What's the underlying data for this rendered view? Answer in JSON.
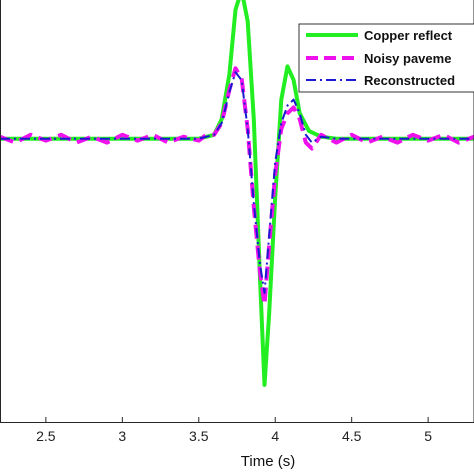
{
  "chart_data": {
    "type": "line",
    "xlabel": "Time (s)",
    "ylabel": "",
    "title": "",
    "xlim": [
      2.2,
      5.3
    ],
    "ylim": [
      -1.45,
      0.72
    ],
    "x_ticks": [
      2.5,
      3,
      3.5,
      4,
      4.5,
      5
    ],
    "x_tick_labels": [
      "2.5",
      "3",
      "3.5",
      "4",
      "4.5",
      "5"
    ],
    "grid": false,
    "legend_position": "top-right",
    "series": [
      {
        "name": "Copper reflect",
        "color": "#22ee22",
        "style": "solid",
        "x": [
          2.2,
          3.5,
          3.6,
          3.65,
          3.7,
          3.74,
          3.78,
          3.82,
          3.86,
          3.9,
          3.93,
          3.96,
          4.0,
          4.04,
          4.08,
          4.12,
          4.16,
          4.22,
          4.3,
          4.4,
          5.3
        ],
        "y": [
          0.0,
          0.0,
          0.02,
          0.1,
          0.33,
          0.66,
          0.76,
          0.6,
          0.1,
          -0.7,
          -1.26,
          -0.9,
          -0.3,
          0.2,
          0.37,
          0.3,
          0.13,
          0.04,
          0.01,
          0.0,
          0.0
        ]
      },
      {
        "name": "Noisy paveme",
        "color": "#ee11ee",
        "style": "dashed",
        "x": [
          2.2,
          2.3,
          2.4,
          2.5,
          2.6,
          2.7,
          2.8,
          2.9,
          3.0,
          3.1,
          3.2,
          3.3,
          3.4,
          3.5,
          3.55,
          3.6,
          3.65,
          3.7,
          3.74,
          3.78,
          3.82,
          3.86,
          3.9,
          3.93,
          3.96,
          4.0,
          4.04,
          4.08,
          4.12,
          4.16,
          4.2,
          4.24,
          4.3,
          4.4,
          4.5,
          4.6,
          4.7,
          4.8,
          4.9,
          5.0,
          5.1,
          5.2,
          5.3
        ],
        "y": [
          0.01,
          -0.02,
          0.02,
          -0.01,
          0.02,
          -0.02,
          0.01,
          -0.02,
          0.02,
          -0.01,
          0.02,
          -0.02,
          0.01,
          -0.01,
          0.02,
          0.02,
          0.08,
          0.25,
          0.36,
          0.31,
          0.05,
          -0.35,
          -0.68,
          -0.85,
          -0.55,
          -0.18,
          0.05,
          0.13,
          0.16,
          0.1,
          -0.02,
          -0.05,
          0.02,
          -0.02,
          0.02,
          -0.02,
          0.01,
          -0.02,
          0.02,
          -0.01,
          0.02,
          -0.02,
          0.01
        ]
      },
      {
        "name": "Reconstructed",
        "color": "#1a1ad0",
        "style": "dashdot",
        "x": [
          2.2,
          3.5,
          3.6,
          3.65,
          3.7,
          3.74,
          3.78,
          3.82,
          3.86,
          3.9,
          3.93,
          3.96,
          4.0,
          4.04,
          4.08,
          4.12,
          4.16,
          4.2,
          4.24,
          4.3,
          4.4,
          5.3
        ],
        "y": [
          0.0,
          0.0,
          0.02,
          0.08,
          0.24,
          0.34,
          0.3,
          0.05,
          -0.33,
          -0.64,
          -0.79,
          -0.5,
          -0.12,
          0.08,
          0.17,
          0.2,
          0.13,
          0.02,
          -0.02,
          0.01,
          0.0,
          0.0
        ]
      }
    ]
  }
}
